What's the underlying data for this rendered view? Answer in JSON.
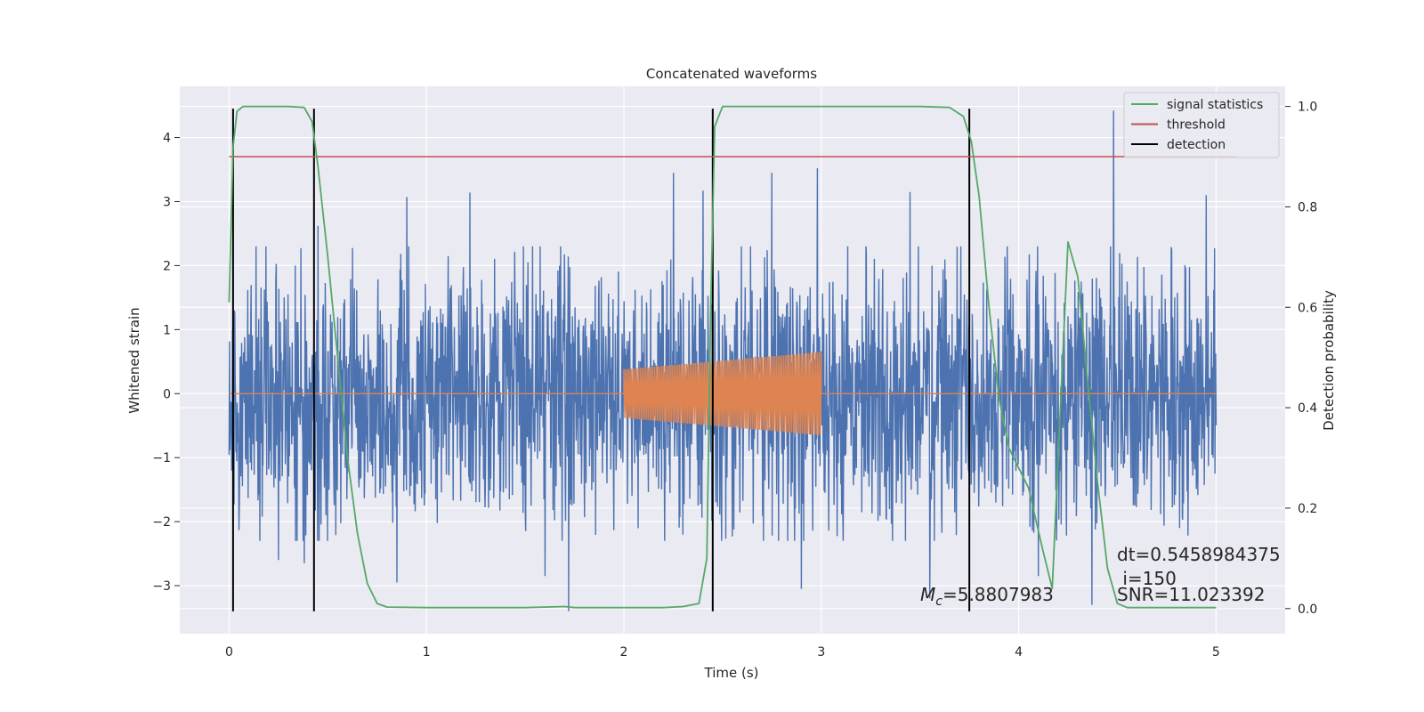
{
  "chart_data": {
    "type": "line",
    "title": "Concatenated waveforms",
    "xlabel": "Time (s)",
    "ylabel": "Whitened strain",
    "ylabel_right": "Detection probability",
    "xlim": [
      -0.25,
      5.35
    ],
    "ylim": [
      -3.75,
      4.8
    ],
    "ylim_right": [
      -0.05,
      1.04
    ],
    "x_ticks": [
      0,
      1,
      2,
      3,
      4,
      5
    ],
    "y_ticks": [
      -3,
      -2,
      -1,
      0,
      1,
      2,
      3,
      4
    ],
    "y_ticks_right": [
      0.0,
      0.2,
      0.4,
      0.6,
      0.8,
      1.0
    ],
    "x_tick_labels": [
      "0",
      "1",
      "2",
      "3",
      "4",
      "5"
    ],
    "y_tick_labels": [
      "−3",
      "−2",
      "−1",
      "0",
      "1",
      "2",
      "3",
      "4"
    ],
    "y_tick_labels_right": [
      "0.0",
      "0.2",
      "0.4",
      "0.6",
      "0.8",
      "1.0"
    ],
    "grid": true,
    "legend_position": "top-right",
    "colors": {
      "background": "#eaeaf2",
      "noise": "#4c72b0",
      "signal": "#dd8452",
      "statistics": "#55a868",
      "threshold": "#c44e52",
      "detection": "#000000"
    },
    "legend": [
      {
        "label": "signal statistics",
        "color": "#55a868"
      },
      {
        "label": "threshold",
        "color": "#c44e52"
      },
      {
        "label": "detection",
        "color": "#000000"
      }
    ],
    "series": [
      {
        "name": "signal statistics",
        "axis": "right",
        "x": [
          0,
          0.02,
          0.04,
          0.07,
          0.12,
          0.2,
          0.3,
          0.38,
          0.42,
          0.45,
          0.5,
          0.55,
          0.6,
          0.65,
          0.7,
          0.75,
          0.8,
          1.0,
          1.5,
          1.7,
          1.75,
          2.0,
          2.2,
          2.3,
          2.38,
          2.42,
          2.44,
          2.46,
          2.5,
          2.55,
          2.6,
          3.0,
          3.5,
          3.65,
          3.72,
          3.76,
          3.8,
          3.85,
          3.9,
          3.95,
          4.05,
          4.12,
          4.17,
          4.2,
          4.25,
          4.3,
          4.35,
          4.4,
          4.45,
          4.5,
          4.55,
          4.6,
          4.7,
          5.0
        ],
        "y": [
          0.61,
          0.92,
          0.99,
          1.0,
          1.0,
          1.0,
          1.0,
          0.998,
          0.97,
          0.88,
          0.7,
          0.5,
          0.3,
          0.15,
          0.05,
          0.01,
          0.003,
          0.002,
          0.002,
          0.004,
          0.002,
          0.002,
          0.002,
          0.004,
          0.01,
          0.1,
          0.6,
          0.96,
          1.0,
          1.0,
          1.0,
          1.0,
          1.0,
          0.998,
          0.98,
          0.93,
          0.82,
          0.6,
          0.42,
          0.32,
          0.24,
          0.12,
          0.04,
          0.3,
          0.73,
          0.66,
          0.45,
          0.25,
          0.08,
          0.01,
          0.002,
          0.002,
          0.002,
          0.002
        ]
      },
      {
        "name": "threshold",
        "axis": "right",
        "x": [
          0,
          5.1
        ],
        "y": [
          0.9,
          0.9
        ]
      },
      {
        "name": "detection",
        "axis": "left",
        "x": [
          0.02,
          0.43,
          2.45,
          3.75
        ],
        "y_range": [
          -3.4,
          4.45
        ]
      },
      {
        "axis": "left",
        "x_range": [
          0,
          5
        ],
        "amplitude": 2.3,
        "spikes": [
          {
            "x": 0.45,
            "y": 2.62
          },
          {
            "x": 0.9,
            "y": 3.07
          },
          {
            "x": 1.22,
            "y": 3.14
          },
          {
            "x": 1.72,
            "y": -3.4
          },
          {
            "x": 2.25,
            "y": 3.45
          },
          {
            "x": 2.4,
            "y": 3.17
          },
          {
            "x": 2.75,
            "y": 3.45
          },
          {
            "x": 2.98,
            "y": 3.52
          },
          {
            "x": 3.45,
            "y": 3.15
          },
          {
            "x": 4.48,
            "y": 4.42
          },
          {
            "x": 4.95,
            "y": 3.1
          },
          {
            "x": 0.25,
            "y": -2.6
          },
          {
            "x": 0.38,
            "y": -2.65
          },
          {
            "x": 0.85,
            "y": -2.95
          },
          {
            "x": 1.6,
            "y": -2.85
          },
          {
            "x": 2.9,
            "y": -3.05
          },
          {
            "x": 3.55,
            "y": -3.2
          },
          {
            "x": 4.37,
            "y": -3.3
          },
          {
            "x": 4.1,
            "y": -2.85
          }
        ]
      },
      {
        "axis": "left",
        "x_range": [
          2.0,
          3.0
        ],
        "baseline_x": [
          0,
          5
        ],
        "amplitude_start": 0.38,
        "amplitude_end": 0.65
      }
    ],
    "annotations": {
      "mc_symbol": "M",
      "mc_subscript": "c",
      "mc_value": "=5.8807983",
      "dt": "dt=0.5458984375",
      "i": " i=150",
      "snr": "SNR=11.023392"
    }
  }
}
